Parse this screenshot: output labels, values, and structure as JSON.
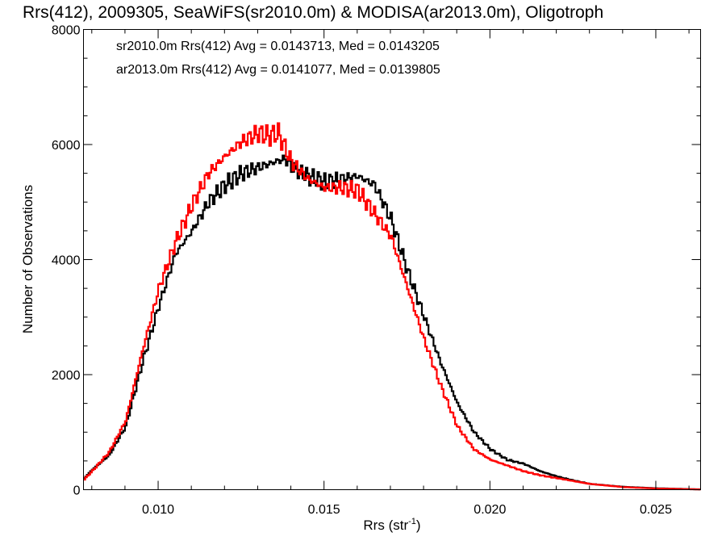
{
  "chart_data": {
    "type": "line",
    "title": "Rrs(412), 2009305, SeaWiFS(sr2010.0m) & MODISA(ar2013.0m), Oligotroph",
    "xlabel": "Rrs (str",
    "xlabel_sup": "-1",
    "xlabel_end": ")",
    "ylabel": "Number of Observations",
    "xlim": [
      0.00775,
      0.02635
    ],
    "ylim": [
      0,
      8000
    ],
    "x_ticks": [
      0.01,
      0.015,
      0.02,
      0.025
    ],
    "x_tick_labels": [
      "0.010",
      "0.015",
      "0.020",
      "0.025"
    ],
    "y_ticks": [
      0,
      2000,
      4000,
      6000,
      8000
    ],
    "y_tick_labels": [
      "0",
      "2000",
      "4000",
      "6000",
      "8000"
    ],
    "grid": false,
    "legend_position": "top-left",
    "series": [
      {
        "name": "sr2010.0m Rrs(412) Avg = 0.0143713, Med = 0.0143205",
        "color": "#000000",
        "x": [
          0.00775,
          0.008,
          0.0085,
          0.009,
          0.0095,
          0.01,
          0.0105,
          0.011,
          0.0115,
          0.012,
          0.0125,
          0.013,
          0.0135,
          0.0138,
          0.014,
          0.0145,
          0.015,
          0.0155,
          0.016,
          0.0165,
          0.017,
          0.0175,
          0.018,
          0.0185,
          0.019,
          0.0195,
          0.02,
          0.0205,
          0.021,
          0.0215,
          0.022,
          0.0225,
          0.023,
          0.024,
          0.025,
          0.026,
          0.02635
        ],
        "y": [
          200,
          350,
          600,
          1100,
          2200,
          3200,
          4100,
          4500,
          5000,
          5300,
          5500,
          5600,
          5700,
          5750,
          5600,
          5450,
          5350,
          5400,
          5450,
          5300,
          4700,
          3800,
          3000,
          2200,
          1500,
          1000,
          700,
          520,
          450,
          320,
          230,
          160,
          100,
          50,
          25,
          10,
          5
        ]
      },
      {
        "name": "ar2013.0m Rrs(412) Avg = 0.0141077, Med = 0.0139805",
        "color": "#ff0000",
        "x": [
          0.00775,
          0.008,
          0.0085,
          0.009,
          0.0095,
          0.01,
          0.0105,
          0.011,
          0.0115,
          0.012,
          0.0125,
          0.013,
          0.0133,
          0.0136,
          0.014,
          0.0145,
          0.015,
          0.0155,
          0.016,
          0.0165,
          0.017,
          0.0175,
          0.018,
          0.0185,
          0.019,
          0.0195,
          0.02,
          0.0205,
          0.021,
          0.0215,
          0.022,
          0.0225,
          0.023,
          0.024,
          0.025,
          0.026,
          0.02635
        ],
        "y": [
          180,
          330,
          650,
          1200,
          2400,
          3500,
          4300,
          4950,
          5500,
          5800,
          6050,
          6200,
          6150,
          6200,
          5700,
          5400,
          5250,
          5250,
          5200,
          4800,
          4400,
          3500,
          2600,
          1800,
          1100,
          700,
          520,
          420,
          320,
          250,
          200,
          150,
          100,
          45,
          20,
          8,
          4
        ]
      }
    ]
  }
}
